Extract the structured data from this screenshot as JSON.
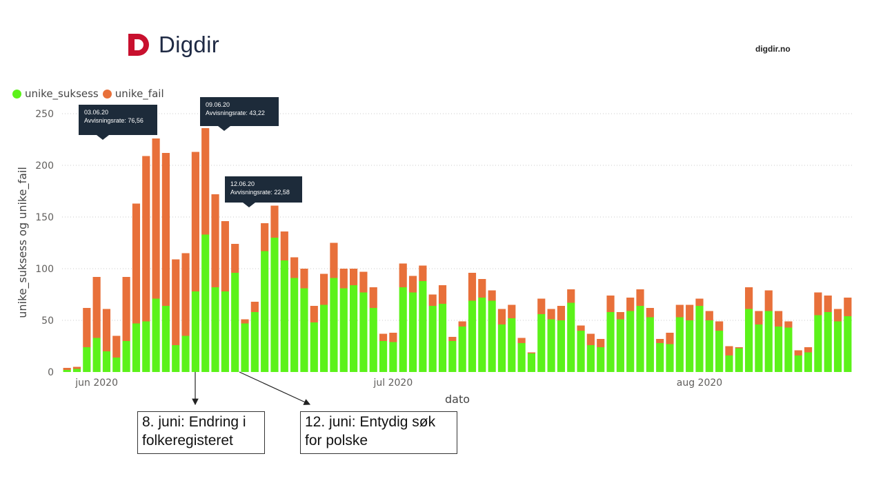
{
  "header": {
    "logo_text": "Digdir",
    "site": "digdir.no",
    "brand_color": "#c8102e"
  },
  "legend": {
    "items": [
      {
        "label": "unike_suksess",
        "color": "#5cf21a"
      },
      {
        "label": "unike_fail",
        "color": "#e8703a"
      }
    ]
  },
  "tooltips": [
    {
      "date": "03.06.20",
      "text": "Avvisningsrate: 76,56"
    },
    {
      "date": "09.06.20",
      "text": "Avvisningsrate: 43,22"
    },
    {
      "date": "12.06.20",
      "text": "Avvisningsrate: 22,58"
    }
  ],
  "annotations": [
    {
      "line1": "8. juni: Endring i",
      "line2": "folkeregisteret"
    },
    {
      "line1": "12. juni: Entydig søk",
      "line2": "for polske"
    }
  ],
  "chart_data": {
    "type": "bar",
    "stacked": true,
    "xlabel": "dato",
    "ylabel": "unike_suksess og unike_fail",
    "ylim": [
      0,
      250
    ],
    "yticks": [
      0,
      50,
      100,
      150,
      200,
      250
    ],
    "xticks": [
      {
        "label": "jun 2020",
        "index": 3
      },
      {
        "label": "jul 2020",
        "index": 33
      },
      {
        "label": "aug 2020",
        "index": 64
      }
    ],
    "categories": [
      "28.05",
      "29.05",
      "30.05",
      "31.05",
      "01.06",
      "02.06",
      "03.06",
      "04.06",
      "05.06",
      "06.06",
      "07.06",
      "08.06",
      "09.06",
      "10.06",
      "11.06",
      "12.06",
      "13.06",
      "14.06",
      "15.06",
      "16.06",
      "17.06",
      "18.06",
      "19.06",
      "20.06",
      "21.06",
      "22.06",
      "23.06",
      "24.06",
      "25.06",
      "26.06",
      "27.06",
      "28.06",
      "29.06",
      "30.06",
      "01.07",
      "02.07",
      "03.07",
      "04.07",
      "05.07",
      "06.07",
      "07.07",
      "08.07",
      "09.07",
      "10.07",
      "11.07",
      "12.07",
      "13.07",
      "14.07",
      "15.07",
      "16.07",
      "17.07",
      "18.07",
      "19.07",
      "20.07",
      "21.07",
      "22.07",
      "23.07",
      "24.07",
      "25.07",
      "26.07",
      "27.07",
      "28.07",
      "29.07",
      "30.07",
      "31.07",
      "01.08",
      "02.08",
      "03.08",
      "04.08",
      "05.08",
      "06.08",
      "07.08",
      "08.08",
      "09.08",
      "10.08",
      "11.08",
      "12.08",
      "13.08",
      "14.08",
      "15.08"
    ],
    "series": [
      {
        "name": "unike_suksess",
        "color": "#5cf21a",
        "values": [
          2,
          3,
          24,
          33,
          20,
          14,
          30,
          47,
          49,
          71,
          64,
          26,
          35,
          78,
          133,
          82,
          78,
          96,
          47,
          58,
          117,
          130,
          108,
          91,
          81,
          48,
          65,
          91,
          81,
          84,
          77,
          62,
          30,
          29,
          82,
          77,
          88,
          64,
          66,
          30,
          44,
          69,
          72,
          69,
          46,
          52,
          28,
          18,
          56,
          51,
          50,
          67,
          40,
          26,
          24,
          58,
          51,
          59,
          64,
          53,
          28,
          27,
          53,
          50,
          64,
          50,
          40,
          16,
          23,
          61,
          46,
          59,
          44,
          43,
          16,
          19,
          55,
          58,
          49,
          54
        ]
      },
      {
        "name": "unike_fail",
        "color": "#e8703a",
        "values": [
          2,
          2,
          38,
          59,
          41,
          21,
          62,
          116,
          160,
          155,
          148,
          83,
          80,
          135,
          103,
          90,
          68,
          28,
          4,
          10,
          27,
          31,
          28,
          20,
          19,
          16,
          30,
          34,
          19,
          16,
          20,
          20,
          7,
          9,
          23,
          16,
          15,
          11,
          18,
          4,
          5,
          27,
          18,
          10,
          15,
          13,
          5,
          1,
          15,
          10,
          14,
          13,
          5,
          11,
          8,
          16,
          7,
          13,
          16,
          9,
          4,
          11,
          12,
          15,
          7,
          9,
          9,
          9,
          1,
          21,
          13,
          20,
          15,
          6,
          5,
          5,
          22,
          16,
          12,
          18
        ]
      }
    ]
  }
}
